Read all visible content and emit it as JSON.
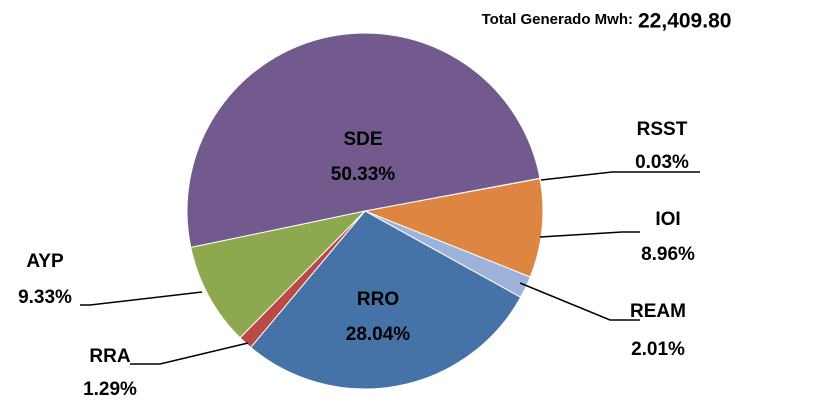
{
  "chart_data": {
    "type": "pie",
    "title": "Total Generado Mwh:",
    "total": "22,409.80",
    "categories": [
      "RSST",
      "IOI",
      "REAM",
      "RRO",
      "RRA",
      "AYP",
      "SDE"
    ],
    "values": [
      0.03,
      8.96,
      2.01,
      28.04,
      1.29,
      9.33,
      50.33
    ],
    "value_labels": [
      "0.03%",
      "8.96%",
      "2.01%",
      "28.04%",
      "1.29%",
      "9.33%",
      "50.33%"
    ],
    "colors": [
      "#4bacc6",
      "#dd8541",
      "#9db3d9",
      "#4573a7",
      "#b94a48",
      "#8ea84f",
      "#725a8e"
    ]
  }
}
